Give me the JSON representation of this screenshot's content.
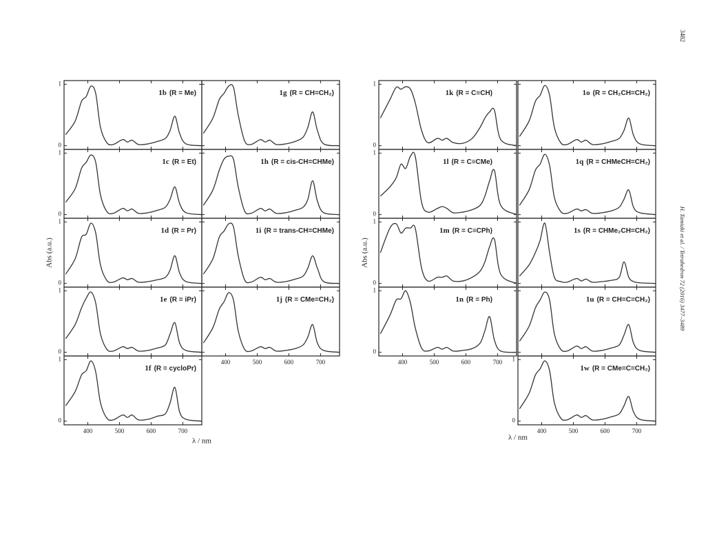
{
  "page_number": "3482",
  "running_head": "H. Tamiaki et al. / Tetrahedron 72 (2016) 3477–3489",
  "figure": {
    "ylabel": "Abs (a.u.)",
    "xlabel": "λ / nm"
  },
  "chart_data": [
    {
      "type": "line",
      "compound": "1b",
      "substituent": "(R = Me)",
      "x": [
        330,
        360,
        380,
        395,
        410,
        425,
        440,
        460,
        480,
        510,
        525,
        540,
        560,
        590,
        620,
        645,
        660,
        675,
        690,
        710,
        760
      ],
      "values": [
        0.18,
        0.4,
        0.72,
        0.8,
        0.97,
        0.85,
        0.3,
        0.05,
        0.02,
        0.1,
        0.06,
        0.09,
        0.02,
        0.03,
        0.07,
        0.12,
        0.25,
        0.48,
        0.2,
        0.03,
        0.0
      ],
      "xlim": [
        325,
        760
      ],
      "ylim": [
        -0.06,
        1.06
      ],
      "yticks": [
        0,
        1
      ],
      "xticks": [
        400,
        500,
        600,
        700
      ]
    },
    {
      "type": "line",
      "compound": "1c",
      "substituent": "(R = Et)",
      "x": [
        330,
        360,
        380,
        395,
        410,
        425,
        440,
        460,
        480,
        510,
        525,
        540,
        560,
        590,
        620,
        645,
        660,
        675,
        690,
        710,
        760
      ],
      "values": [
        0.2,
        0.42,
        0.75,
        0.85,
        0.97,
        0.85,
        0.32,
        0.05,
        0.02,
        0.1,
        0.06,
        0.09,
        0.02,
        0.03,
        0.07,
        0.12,
        0.25,
        0.45,
        0.18,
        0.03,
        0.0
      ],
      "xlim": [
        325,
        760
      ],
      "ylim": [
        -0.06,
        1.06
      ],
      "yticks": [
        0,
        1
      ],
      "xticks": [
        400,
        500,
        600,
        700
      ]
    },
    {
      "type": "line",
      "compound": "1d",
      "substituent": "(R = Pr)",
      "x": [
        330,
        360,
        380,
        395,
        410,
        425,
        440,
        460,
        480,
        510,
        525,
        540,
        560,
        590,
        620,
        645,
        660,
        675,
        690,
        710,
        760
      ],
      "values": [
        0.15,
        0.4,
        0.75,
        0.8,
        0.98,
        0.82,
        0.3,
        0.05,
        0.02,
        0.09,
        0.06,
        0.08,
        0.02,
        0.03,
        0.06,
        0.1,
        0.22,
        0.45,
        0.17,
        0.03,
        0.0
      ],
      "xlim": [
        325,
        760
      ],
      "ylim": [
        -0.06,
        1.06
      ],
      "yticks": [
        0,
        1
      ],
      "xticks": [
        400,
        500,
        600,
        700
      ]
    },
    {
      "type": "line",
      "compound": "1e",
      "substituent": "(R = iPr)",
      "x": [
        330,
        360,
        380,
        395,
        410,
        425,
        440,
        460,
        480,
        510,
        525,
        540,
        560,
        590,
        620,
        645,
        660,
        675,
        690,
        710,
        760
      ],
      "values": [
        0.22,
        0.45,
        0.72,
        0.88,
        0.98,
        0.8,
        0.3,
        0.05,
        0.02,
        0.09,
        0.06,
        0.08,
        0.02,
        0.03,
        0.07,
        0.12,
        0.3,
        0.48,
        0.15,
        0.03,
        0.0
      ],
      "xlim": [
        325,
        760
      ],
      "ylim": [
        -0.06,
        1.06
      ],
      "yticks": [
        0,
        1
      ],
      "xticks": [
        400,
        500,
        600,
        700
      ]
    },
    {
      "type": "line",
      "compound": "1f",
      "substituent": "(R = cycloPr)",
      "x": [
        330,
        360,
        380,
        395,
        410,
        425,
        440,
        460,
        480,
        510,
        525,
        540,
        560,
        590,
        620,
        645,
        660,
        675,
        690,
        710,
        760
      ],
      "values": [
        0.25,
        0.48,
        0.75,
        0.82,
        0.98,
        0.8,
        0.3,
        0.05,
        0.02,
        0.1,
        0.06,
        0.1,
        0.02,
        0.03,
        0.08,
        0.12,
        0.3,
        0.55,
        0.15,
        0.03,
        0.0
      ],
      "xlim": [
        325,
        760
      ],
      "ylim": [
        -0.06,
        1.06
      ],
      "yticks": [
        0,
        1
      ],
      "xticks": [
        400,
        500,
        600,
        700
      ]
    },
    {
      "type": "line",
      "compound": "1g",
      "substituent": "(R = CH=CH₂)",
      "x": [
        330,
        360,
        380,
        395,
        410,
        425,
        440,
        460,
        480,
        510,
        525,
        540,
        560,
        590,
        620,
        645,
        660,
        675,
        690,
        710,
        760
      ],
      "values": [
        0.2,
        0.45,
        0.75,
        0.85,
        0.97,
        0.95,
        0.5,
        0.08,
        0.02,
        0.1,
        0.06,
        0.09,
        0.02,
        0.03,
        0.07,
        0.14,
        0.3,
        0.55,
        0.25,
        0.03,
        0.0
      ],
      "xlim": [
        325,
        760
      ],
      "ylim": [
        -0.06,
        1.06
      ],
      "yticks": [
        0,
        1
      ],
      "xticks": [
        400,
        500,
        600,
        700
      ]
    },
    {
      "type": "line",
      "compound": "1h",
      "substituent": "(R = cis-CH=CHMe)",
      "x": [
        330,
        360,
        380,
        395,
        410,
        425,
        440,
        460,
        480,
        510,
        525,
        540,
        560,
        590,
        620,
        645,
        660,
        675,
        690,
        710,
        760
      ],
      "values": [
        0.15,
        0.4,
        0.72,
        0.9,
        0.95,
        0.9,
        0.45,
        0.06,
        0.02,
        0.1,
        0.06,
        0.09,
        0.02,
        0.03,
        0.07,
        0.12,
        0.25,
        0.55,
        0.22,
        0.03,
        0.0
      ],
      "xlim": [
        325,
        760
      ],
      "ylim": [
        -0.06,
        1.06
      ],
      "yticks": [
        0,
        1
      ],
      "xticks": [
        400,
        500,
        600,
        700
      ]
    },
    {
      "type": "line",
      "compound": "1i",
      "substituent": "(R = trans-CH=CHMe)",
      "x": [
        330,
        360,
        380,
        395,
        410,
        425,
        440,
        460,
        480,
        510,
        525,
        540,
        560,
        590,
        620,
        645,
        660,
        675,
        690,
        710,
        760
      ],
      "values": [
        0.15,
        0.4,
        0.75,
        0.85,
        0.97,
        0.92,
        0.45,
        0.06,
        0.02,
        0.1,
        0.06,
        0.08,
        0.02,
        0.03,
        0.07,
        0.12,
        0.25,
        0.45,
        0.25,
        0.03,
        0.0
      ],
      "xlim": [
        325,
        760
      ],
      "ylim": [
        -0.06,
        1.06
      ],
      "yticks": [
        0,
        1
      ],
      "xticks": [
        400,
        500,
        600,
        700
      ]
    },
    {
      "type": "line",
      "compound": "1j",
      "substituent": "(R = CMe=CH₂)",
      "x": [
        330,
        360,
        380,
        395,
        410,
        425,
        440,
        460,
        480,
        510,
        525,
        540,
        560,
        590,
        620,
        645,
        660,
        675,
        690,
        710,
        760
      ],
      "values": [
        0.15,
        0.4,
        0.7,
        0.82,
        0.97,
        0.85,
        0.35,
        0.05,
        0.02,
        0.09,
        0.06,
        0.08,
        0.02,
        0.03,
        0.06,
        0.12,
        0.25,
        0.45,
        0.15,
        0.03,
        0.0
      ],
      "xlim": [
        325,
        760
      ],
      "ylim": [
        -0.06,
        1.06
      ],
      "yticks": [
        0,
        1
      ],
      "xticks": [
        400,
        500,
        600,
        700
      ]
    },
    {
      "type": "line",
      "compound": "1k",
      "substituent": "(R = C≡CH)",
      "x": [
        330,
        360,
        380,
        395,
        410,
        425,
        440,
        460,
        480,
        510,
        525,
        540,
        560,
        590,
        620,
        645,
        660,
        675,
        690,
        710,
        760
      ],
      "values": [
        0.45,
        0.75,
        0.95,
        0.92,
        0.96,
        0.92,
        0.7,
        0.25,
        0.05,
        0.12,
        0.09,
        0.12,
        0.05,
        0.04,
        0.12,
        0.3,
        0.45,
        0.55,
        0.58,
        0.1,
        0.0
      ],
      "xlim": [
        325,
        760
      ],
      "ylim": [
        -0.06,
        1.06
      ],
      "yticks": [
        0,
        1
      ],
      "xticks": [
        400,
        500,
        600,
        700
      ]
    },
    {
      "type": "line",
      "compound": "1l",
      "substituent": "(R = C≡CMe)",
      "x": [
        330,
        360,
        380,
        395,
        410,
        425,
        440,
        460,
        480,
        510,
        525,
        540,
        560,
        590,
        620,
        645,
        660,
        675,
        690,
        710,
        760
      ],
      "values": [
        0.3,
        0.45,
        0.6,
        0.82,
        0.75,
        0.95,
        0.95,
        0.2,
        0.04,
        0.1,
        0.13,
        0.1,
        0.03,
        0.04,
        0.08,
        0.15,
        0.3,
        0.55,
        0.72,
        0.15,
        0.0
      ],
      "xlim": [
        325,
        760
      ],
      "ylim": [
        -0.06,
        1.06
      ],
      "yticks": [
        0,
        1
      ],
      "xticks": [
        400,
        500,
        600,
        700
      ]
    },
    {
      "type": "line",
      "compound": "1m",
      "substituent": "(R = C≡CPh)",
      "x": [
        330,
        360,
        380,
        395,
        410,
        425,
        440,
        460,
        480,
        510,
        525,
        540,
        560,
        590,
        620,
        645,
        660,
        675,
        690,
        710,
        760
      ],
      "values": [
        0.5,
        0.9,
        0.97,
        0.82,
        0.9,
        0.9,
        0.9,
        0.25,
        0.04,
        0.1,
        0.1,
        0.12,
        0.04,
        0.04,
        0.1,
        0.2,
        0.35,
        0.6,
        0.72,
        0.15,
        0.0
      ],
      "xlim": [
        325,
        760
      ],
      "ylim": [
        -0.06,
        1.06
      ],
      "yticks": [
        0,
        1
      ],
      "xticks": [
        400,
        500,
        600,
        700
      ]
    },
    {
      "type": "line",
      "compound": "1n",
      "substituent": "(R = Ph)",
      "x": [
        330,
        360,
        380,
        395,
        410,
        425,
        440,
        460,
        480,
        510,
        525,
        540,
        560,
        590,
        620,
        645,
        660,
        675,
        690,
        710,
        760
      ],
      "values": [
        0.3,
        0.6,
        0.85,
        0.87,
        1.0,
        0.8,
        0.4,
        0.07,
        0.02,
        0.08,
        0.05,
        0.08,
        0.02,
        0.03,
        0.06,
        0.15,
        0.35,
        0.58,
        0.2,
        0.02,
        0.0
      ],
      "xlim": [
        325,
        760
      ],
      "ylim": [
        -0.06,
        1.06
      ],
      "yticks": [
        0,
        1
      ],
      "xticks": [
        400,
        500,
        600,
        700
      ]
    },
    {
      "type": "line",
      "compound": "1o",
      "substituent": "(R = CH₂CH=CH₂)",
      "x": [
        330,
        360,
        380,
        395,
        410,
        425,
        440,
        460,
        480,
        510,
        525,
        540,
        560,
        590,
        620,
        645,
        660,
        675,
        690,
        710,
        760
      ],
      "values": [
        0.15,
        0.4,
        0.72,
        0.82,
        0.98,
        0.82,
        0.3,
        0.05,
        0.02,
        0.1,
        0.06,
        0.09,
        0.02,
        0.03,
        0.07,
        0.12,
        0.25,
        0.45,
        0.17,
        0.03,
        0.0
      ],
      "xlim": [
        325,
        760
      ],
      "ylim": [
        -0.06,
        1.06
      ],
      "yticks": [
        0,
        1
      ],
      "xticks": [
        400,
        500,
        600,
        700
      ]
    },
    {
      "type": "line",
      "compound": "1q",
      "substituent": "(R = CHMeCH=CH₂)",
      "x": [
        330,
        360,
        380,
        395,
        410,
        425,
        440,
        460,
        480,
        510,
        525,
        540,
        560,
        590,
        620,
        645,
        660,
        675,
        690,
        710,
        760
      ],
      "values": [
        0.15,
        0.4,
        0.72,
        0.82,
        0.98,
        0.8,
        0.28,
        0.05,
        0.02,
        0.09,
        0.06,
        0.08,
        0.02,
        0.03,
        0.06,
        0.12,
        0.25,
        0.4,
        0.12,
        0.03,
        0.0
      ],
      "xlim": [
        325,
        760
      ],
      "ylim": [
        -0.06,
        1.06
      ],
      "yticks": [
        0,
        1
      ],
      "xticks": [
        400,
        500,
        600,
        700
      ]
    },
    {
      "type": "line",
      "compound": "1s",
      "substituent": "(R = CHMe₂CH=CH₂)",
      "x": [
        330,
        360,
        380,
        395,
        410,
        425,
        440,
        460,
        480,
        510,
        525,
        540,
        560,
        590,
        620,
        645,
        660,
        675,
        690,
        710,
        760
      ],
      "values": [
        0.12,
        0.3,
        0.5,
        0.7,
        0.98,
        0.5,
        0.1,
        0.03,
        0.02,
        0.08,
        0.04,
        0.07,
        0.02,
        0.03,
        0.05,
        0.1,
        0.35,
        0.1,
        0.03,
        0.01,
        0.0
      ],
      "xlim": [
        325,
        760
      ],
      "ylim": [
        -0.06,
        1.06
      ],
      "yticks": [
        0,
        1
      ],
      "xticks": [
        400,
        500,
        600,
        700
      ]
    },
    {
      "type": "line",
      "compound": "1u",
      "substituent": "(R = CH=C=CH₂)",
      "x": [
        330,
        360,
        380,
        395,
        410,
        425,
        440,
        460,
        480,
        510,
        525,
        540,
        560,
        590,
        620,
        645,
        660,
        675,
        690,
        710,
        760
      ],
      "values": [
        0.18,
        0.42,
        0.72,
        0.85,
        0.98,
        0.85,
        0.3,
        0.05,
        0.02,
        0.1,
        0.06,
        0.09,
        0.02,
        0.03,
        0.07,
        0.12,
        0.28,
        0.45,
        0.15,
        0.03,
        0.0
      ],
      "xlim": [
        325,
        760
      ],
      "ylim": [
        -0.06,
        1.06
      ],
      "yticks": [
        0,
        1
      ],
      "xticks": [
        400,
        500,
        600,
        700
      ]
    },
    {
      "type": "line",
      "compound": "1w",
      "substituent": "(R = CMe=C=CH₂)",
      "x": [
        330,
        360,
        380,
        395,
        410,
        425,
        440,
        460,
        480,
        510,
        525,
        540,
        560,
        590,
        620,
        645,
        660,
        675,
        690,
        710,
        760
      ],
      "values": [
        0.2,
        0.45,
        0.75,
        0.85,
        0.98,
        0.82,
        0.3,
        0.05,
        0.02,
        0.1,
        0.06,
        0.09,
        0.02,
        0.03,
        0.07,
        0.12,
        0.25,
        0.4,
        0.15,
        0.03,
        0.0
      ],
      "xlim": [
        325,
        760
      ],
      "ylim": [
        -0.06,
        1.06
      ],
      "yticks": [
        0,
        1
      ],
      "xticks": [
        400,
        500,
        600,
        700
      ]
    }
  ]
}
